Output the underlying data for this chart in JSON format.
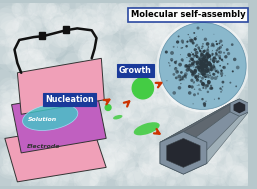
{
  "background_color": "#b8c8cc",
  "labels": {
    "nucleation": "Nucleation",
    "growth": "Growth",
    "solution": "Solution",
    "electrode": "Electrode",
    "title": "Molecular self-assembly"
  },
  "label_box_color": "#1a3a9a",
  "label_text_color": "white",
  "electrode_pink": "#f0a0b8",
  "electrode_purple": "#c060c0",
  "solution_color": "#40c8c8",
  "growth_green": "#44cc44",
  "arrow_color": "#cc3300",
  "wire_color": "#111111",
  "sphere_base": "#8ab8cc",
  "sphere_pore": "#2a3840",
  "tube_outer": "#8090a0",
  "tube_inner": "#252830",
  "tube_highlight": "#a0b0b8",
  "tube_shadow": "#606870",
  "white_bg": "#ffffff"
}
